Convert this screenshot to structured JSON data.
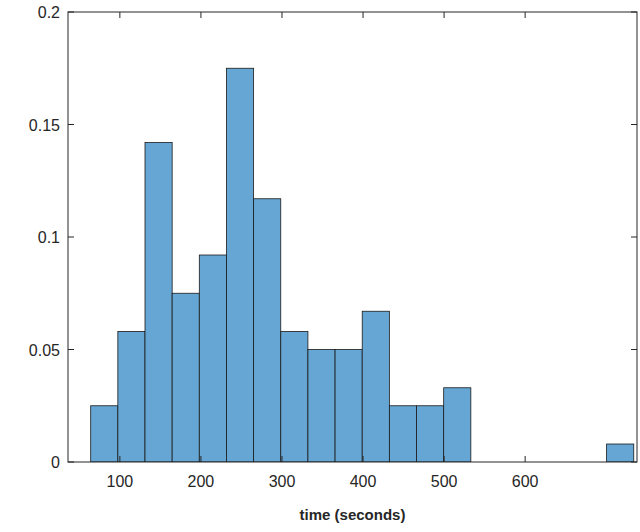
{
  "chart_data": {
    "type": "histogram",
    "x_label": "time (seconds)",
    "bins": [
      64,
      97.5,
      131,
      164.5,
      198,
      231.5,
      265,
      298.5,
      332,
      365.5,
      399,
      432.5,
      466,
      499.5,
      533,
      566.5,
      600,
      633.5,
      667,
      700.5,
      734
    ],
    "values": [
      0.025,
      0.058,
      0.142,
      0.075,
      0.092,
      0.175,
      0.117,
      0.058,
      0.05,
      0.05,
      0.067,
      0.025,
      0.025,
      0.033,
      0,
      0,
      0,
      0,
      0,
      0.008
    ],
    "color": "#66a6d4",
    "xlim": [
      36,
      738
    ],
    "xticks": [
      100,
      200,
      300,
      400,
      500,
      600
    ],
    "ylim": [
      0,
      0.2
    ],
    "yticks": [
      0,
      0.05,
      0.1,
      0.15,
      0.2
    ],
    "grid": false
  }
}
